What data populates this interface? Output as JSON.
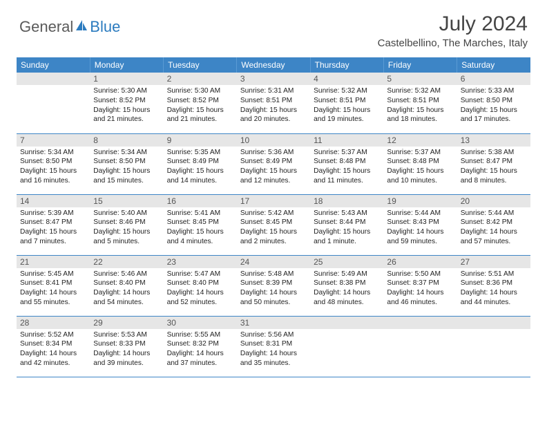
{
  "brand": {
    "part1": "General",
    "part2": "Blue"
  },
  "title": "July 2024",
  "location": "Castelbellino, The Marches, Italy",
  "colors": {
    "header_bg": "#3d85c6",
    "header_text": "#ffffff",
    "daynum_bg": "#e6e6e6",
    "row_divider": "#3d85c6",
    "logo_blue": "#2b7bbf",
    "logo_gray": "#5a5a5a"
  },
  "weekdays": [
    "Sunday",
    "Monday",
    "Tuesday",
    "Wednesday",
    "Thursday",
    "Friday",
    "Saturday"
  ],
  "start_offset": 1,
  "days": [
    {
      "n": "1",
      "sr": "5:30 AM",
      "ss": "8:52 PM",
      "dl": "15 hours and 21 minutes."
    },
    {
      "n": "2",
      "sr": "5:30 AM",
      "ss": "8:52 PM",
      "dl": "15 hours and 21 minutes."
    },
    {
      "n": "3",
      "sr": "5:31 AM",
      "ss": "8:51 PM",
      "dl": "15 hours and 20 minutes."
    },
    {
      "n": "4",
      "sr": "5:32 AM",
      "ss": "8:51 PM",
      "dl": "15 hours and 19 minutes."
    },
    {
      "n": "5",
      "sr": "5:32 AM",
      "ss": "8:51 PM",
      "dl": "15 hours and 18 minutes."
    },
    {
      "n": "6",
      "sr": "5:33 AM",
      "ss": "8:50 PM",
      "dl": "15 hours and 17 minutes."
    },
    {
      "n": "7",
      "sr": "5:34 AM",
      "ss": "8:50 PM",
      "dl": "15 hours and 16 minutes."
    },
    {
      "n": "8",
      "sr": "5:34 AM",
      "ss": "8:50 PM",
      "dl": "15 hours and 15 minutes."
    },
    {
      "n": "9",
      "sr": "5:35 AM",
      "ss": "8:49 PM",
      "dl": "15 hours and 14 minutes."
    },
    {
      "n": "10",
      "sr": "5:36 AM",
      "ss": "8:49 PM",
      "dl": "15 hours and 12 minutes."
    },
    {
      "n": "11",
      "sr": "5:37 AM",
      "ss": "8:48 PM",
      "dl": "15 hours and 11 minutes."
    },
    {
      "n": "12",
      "sr": "5:37 AM",
      "ss": "8:48 PM",
      "dl": "15 hours and 10 minutes."
    },
    {
      "n": "13",
      "sr": "5:38 AM",
      "ss": "8:47 PM",
      "dl": "15 hours and 8 minutes."
    },
    {
      "n": "14",
      "sr": "5:39 AM",
      "ss": "8:47 PM",
      "dl": "15 hours and 7 minutes."
    },
    {
      "n": "15",
      "sr": "5:40 AM",
      "ss": "8:46 PM",
      "dl": "15 hours and 5 minutes."
    },
    {
      "n": "16",
      "sr": "5:41 AM",
      "ss": "8:45 PM",
      "dl": "15 hours and 4 minutes."
    },
    {
      "n": "17",
      "sr": "5:42 AM",
      "ss": "8:45 PM",
      "dl": "15 hours and 2 minutes."
    },
    {
      "n": "18",
      "sr": "5:43 AM",
      "ss": "8:44 PM",
      "dl": "15 hours and 1 minute."
    },
    {
      "n": "19",
      "sr": "5:44 AM",
      "ss": "8:43 PM",
      "dl": "14 hours and 59 minutes."
    },
    {
      "n": "20",
      "sr": "5:44 AM",
      "ss": "8:42 PM",
      "dl": "14 hours and 57 minutes."
    },
    {
      "n": "21",
      "sr": "5:45 AM",
      "ss": "8:41 PM",
      "dl": "14 hours and 55 minutes."
    },
    {
      "n": "22",
      "sr": "5:46 AM",
      "ss": "8:40 PM",
      "dl": "14 hours and 54 minutes."
    },
    {
      "n": "23",
      "sr": "5:47 AM",
      "ss": "8:40 PM",
      "dl": "14 hours and 52 minutes."
    },
    {
      "n": "24",
      "sr": "5:48 AM",
      "ss": "8:39 PM",
      "dl": "14 hours and 50 minutes."
    },
    {
      "n": "25",
      "sr": "5:49 AM",
      "ss": "8:38 PM",
      "dl": "14 hours and 48 minutes."
    },
    {
      "n": "26",
      "sr": "5:50 AM",
      "ss": "8:37 PM",
      "dl": "14 hours and 46 minutes."
    },
    {
      "n": "27",
      "sr": "5:51 AM",
      "ss": "8:36 PM",
      "dl": "14 hours and 44 minutes."
    },
    {
      "n": "28",
      "sr": "5:52 AM",
      "ss": "8:34 PM",
      "dl": "14 hours and 42 minutes."
    },
    {
      "n": "29",
      "sr": "5:53 AM",
      "ss": "8:33 PM",
      "dl": "14 hours and 39 minutes."
    },
    {
      "n": "30",
      "sr": "5:55 AM",
      "ss": "8:32 PM",
      "dl": "14 hours and 37 minutes."
    },
    {
      "n": "31",
      "sr": "5:56 AM",
      "ss": "8:31 PM",
      "dl": "14 hours and 35 minutes."
    }
  ],
  "labels": {
    "sunrise": "Sunrise:",
    "sunset": "Sunset:",
    "daylight": "Daylight:"
  }
}
